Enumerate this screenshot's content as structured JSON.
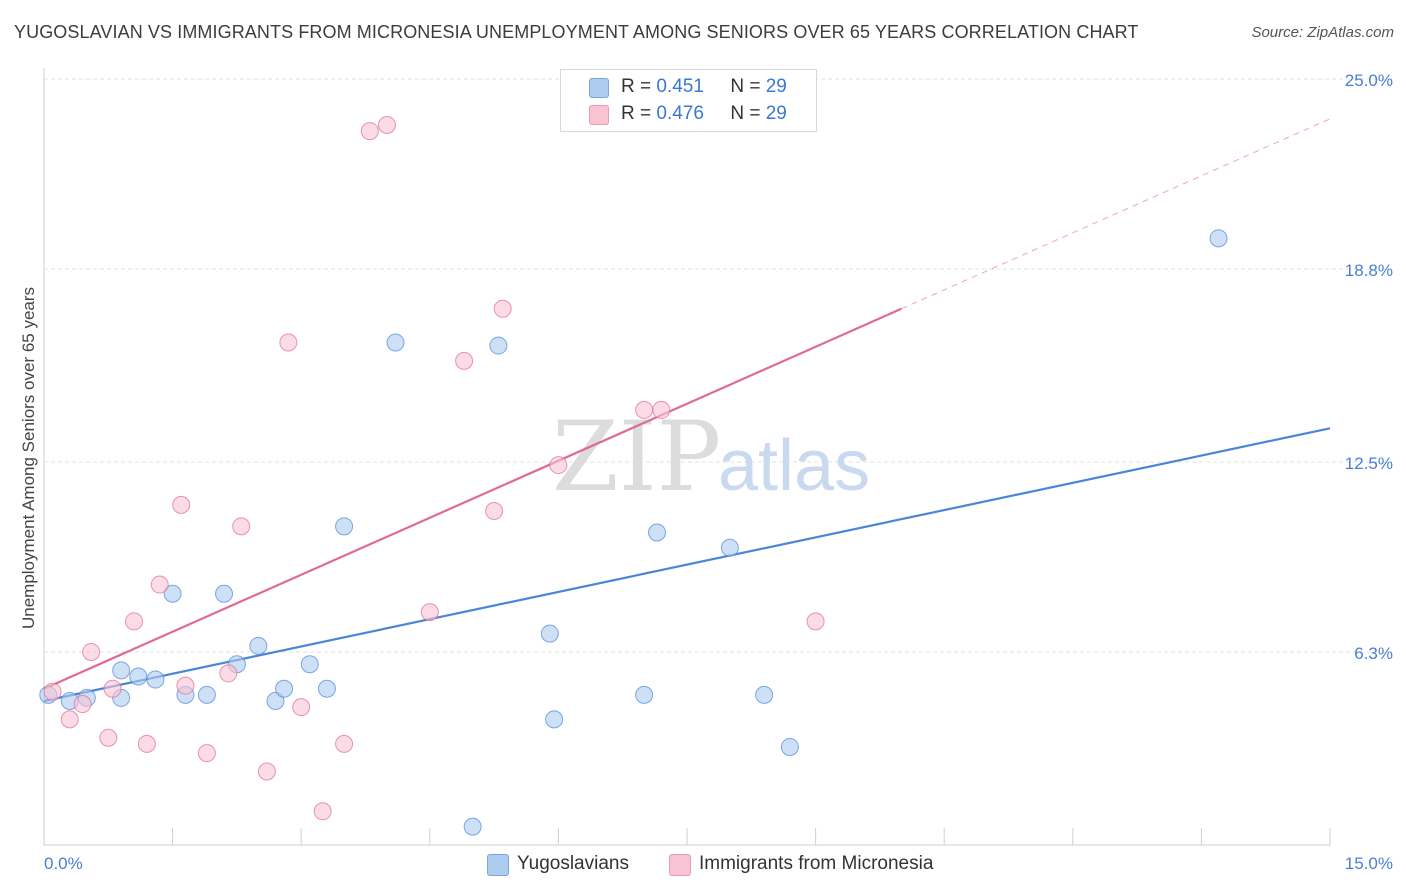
{
  "title": "YUGOSLAVIAN VS IMMIGRANTS FROM MICRONESIA UNEMPLOYMENT AMONG SENIORS OVER 65 YEARS CORRELATION CHART",
  "source": "Source: ZipAtlas.com",
  "watermark": {
    "zip": "ZIP",
    "atlas": "atlas"
  },
  "legend": {
    "rows": [
      {
        "r_label": "R = ",
        "r_value": "0.451",
        "n_label": "N = ",
        "n_value": "29",
        "color": "#aecbf0",
        "border": "#7aa6e0"
      },
      {
        "r_label": "R = ",
        "r_value": "0.476",
        "n_label": "N = ",
        "n_value": "29",
        "color": "#f8c3d3",
        "border": "#ec9ab4"
      }
    ]
  },
  "bottom_legend": [
    {
      "label": "Yugoslavians",
      "color": "#aecbf0",
      "border": "#7aa6e0"
    },
    {
      "label": "Immigrants from Micronesia",
      "color": "#f8c3d3",
      "border": "#ec9ab4"
    }
  ],
  "chart_data": {
    "type": "scatter",
    "title": "YUGOSLAVIAN VS IMMIGRANTS FROM MICRONESIA UNEMPLOYMENT AMONG SENIORS OVER 65 YEARS CORRELATION CHART",
    "xlabel": "",
    "ylabel": "Unemployment Among Seniors over 65 years",
    "xlim": [
      0,
      15
    ],
    "ylim": [
      0,
      25
    ],
    "x_tick_labels": [
      "0.0%",
      "15.0%"
    ],
    "y_ticks": [
      6.3,
      12.5,
      18.8,
      25.0
    ],
    "y_tick_labels": [
      "6.3%",
      "12.5%",
      "18.8%",
      "25.0%"
    ],
    "grid": true,
    "series": [
      {
        "name": "Yugoslavians",
        "color": "#4a86d8",
        "fill": "#aecbf0",
        "points": [
          [
            0.05,
            4.9
          ],
          [
            0.3,
            4.7
          ],
          [
            0.5,
            4.8
          ],
          [
            0.9,
            4.8
          ],
          [
            0.9,
            5.7
          ],
          [
            1.1,
            5.5
          ],
          [
            1.3,
            5.4
          ],
          [
            1.5,
            8.2
          ],
          [
            1.65,
            4.9
          ],
          [
            1.9,
            4.9
          ],
          [
            2.1,
            8.2
          ],
          [
            2.25,
            5.9
          ],
          [
            2.5,
            6.5
          ],
          [
            2.7,
            4.7
          ],
          [
            2.8,
            5.1
          ],
          [
            3.1,
            5.9
          ],
          [
            3.3,
            5.1
          ],
          [
            3.5,
            10.4
          ],
          [
            4.1,
            16.4
          ],
          [
            5.0,
            0.6
          ],
          [
            5.3,
            16.3
          ],
          [
            5.9,
            6.9
          ],
          [
            5.95,
            4.1
          ],
          [
            7.0,
            4.9
          ],
          [
            7.15,
            10.2
          ],
          [
            8.0,
            9.7
          ],
          [
            8.4,
            4.9
          ],
          [
            8.7,
            3.2
          ],
          [
            13.7,
            19.8
          ]
        ],
        "trend": {
          "x0": 0.0,
          "y0": 4.7,
          "x1": 15.0,
          "y1": 13.6
        }
      },
      {
        "name": "Immigrants from Micronesia",
        "color": "#e06a94",
        "fill": "#f8c3d3",
        "points": [
          [
            0.1,
            5.0
          ],
          [
            0.3,
            4.1
          ],
          [
            0.45,
            4.6
          ],
          [
            0.55,
            6.3
          ],
          [
            0.75,
            3.5
          ],
          [
            0.8,
            5.1
          ],
          [
            1.05,
            7.3
          ],
          [
            1.2,
            3.3
          ],
          [
            1.35,
            8.5
          ],
          [
            1.6,
            11.1
          ],
          [
            1.65,
            5.2
          ],
          [
            1.9,
            3.0
          ],
          [
            2.15,
            5.6
          ],
          [
            2.3,
            10.4
          ],
          [
            2.6,
            2.4
          ],
          [
            2.85,
            16.4
          ],
          [
            3.0,
            4.5
          ],
          [
            3.25,
            1.1
          ],
          [
            3.5,
            3.3
          ],
          [
            3.8,
            23.3
          ],
          [
            4.0,
            23.5
          ],
          [
            4.5,
            7.6
          ],
          [
            4.9,
            15.8
          ],
          [
            5.25,
            10.9
          ],
          [
            5.35,
            17.5
          ],
          [
            6.0,
            12.4
          ],
          [
            7.0,
            14.2
          ],
          [
            7.2,
            14.2
          ],
          [
            9.0,
            7.3
          ]
        ],
        "trend": {
          "x0": 0.0,
          "y0": 5.1,
          "x1": 10.0,
          "y1": 17.5
        },
        "trend_extension": {
          "x0": 10.0,
          "y0": 17.5,
          "x1": 15.0,
          "y1": 23.7
        }
      }
    ]
  }
}
